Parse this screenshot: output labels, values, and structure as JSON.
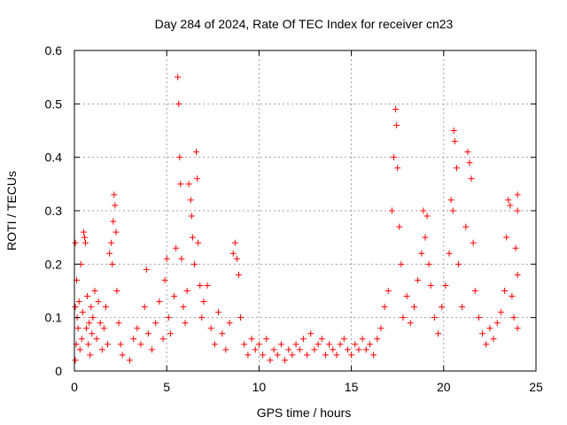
{
  "chart_data": {
    "type": "scatter",
    "title": "Day 284 of 2024, Rate Of TEC Index for receiver cn23",
    "xlabel": "GPS time / hours",
    "ylabel": "ROTI / TECUs",
    "xlim": [
      0,
      25
    ],
    "ylim": [
      0,
      0.6
    ],
    "xticks": [
      0,
      5,
      10,
      15,
      20,
      25
    ],
    "yticks": [
      0,
      0.1,
      0.2,
      0.3,
      0.4,
      0.5,
      0.6
    ],
    "xtick_labels": [
      "0",
      "5",
      "10",
      "15",
      "20",
      "25"
    ],
    "ytick_labels": [
      "0",
      "0.1",
      "0.2",
      "0.3",
      "0.4",
      "0.5",
      "0.6"
    ],
    "grid": true,
    "marker": "+",
    "color": "#ff0000",
    "series": [
      {
        "points": [
          [
            0.05,
            0.02
          ],
          [
            0.05,
            0.12
          ],
          [
            0.05,
            0.24
          ],
          [
            0.1,
            0.05
          ],
          [
            0.12,
            0.17
          ],
          [
            0.15,
            0.1
          ],
          [
            0.2,
            0.08
          ],
          [
            0.25,
            0.13
          ],
          [
            0.3,
            0.04
          ],
          [
            0.35,
            0.2
          ],
          [
            0.4,
            0.06
          ],
          [
            0.45,
            0.11
          ],
          [
            0.5,
            0.26
          ],
          [
            0.55,
            0.25
          ],
          [
            0.6,
            0.24
          ],
          [
            0.65,
            0.08
          ],
          [
            0.7,
            0.14
          ],
          [
            0.75,
            0.05
          ],
          [
            0.8,
            0.09
          ],
          [
            0.85,
            0.03
          ],
          [
            0.9,
            0.12
          ],
          [
            0.95,
            0.07
          ],
          [
            1.0,
            0.1
          ],
          [
            1.1,
            0.15
          ],
          [
            1.2,
            0.06
          ],
          [
            1.3,
            0.13
          ],
          [
            1.4,
            0.09
          ],
          [
            1.5,
            0.04
          ],
          [
            1.6,
            0.08
          ],
          [
            1.7,
            0.12
          ],
          [
            1.8,
            0.05
          ],
          [
            1.9,
            0.22
          ],
          [
            2.0,
            0.24
          ],
          [
            2.05,
            0.2
          ],
          [
            2.1,
            0.28
          ],
          [
            2.15,
            0.33
          ],
          [
            2.2,
            0.31
          ],
          [
            2.25,
            0.26
          ],
          [
            2.3,
            0.15
          ],
          [
            2.4,
            0.09
          ],
          [
            2.5,
            0.05
          ],
          [
            2.6,
            0.03
          ],
          [
            3.0,
            0.02
          ],
          [
            3.2,
            0.06
          ],
          [
            3.4,
            0.08
          ],
          [
            3.6,
            0.05
          ],
          [
            3.8,
            0.12
          ],
          [
            3.9,
            0.19
          ],
          [
            4.0,
            0.07
          ],
          [
            4.2,
            0.04
          ],
          [
            4.4,
            0.09
          ],
          [
            4.6,
            0.13
          ],
          [
            4.8,
            0.06
          ],
          [
            4.9,
            0.17
          ],
          [
            5.0,
            0.21
          ],
          [
            5.1,
            0.1
          ],
          [
            5.2,
            0.07
          ],
          [
            5.4,
            0.14
          ],
          [
            5.5,
            0.23
          ],
          [
            5.6,
            0.55
          ],
          [
            5.65,
            0.5
          ],
          [
            5.7,
            0.4
          ],
          [
            5.75,
            0.35
          ],
          [
            5.8,
            0.21
          ],
          [
            5.9,
            0.12
          ],
          [
            6.0,
            0.09
          ],
          [
            6.1,
            0.15
          ],
          [
            6.2,
            0.35
          ],
          [
            6.3,
            0.32
          ],
          [
            6.35,
            0.29
          ],
          [
            6.4,
            0.25
          ],
          [
            6.5,
            0.2
          ],
          [
            6.6,
            0.41
          ],
          [
            6.65,
            0.36
          ],
          [
            6.7,
            0.24
          ],
          [
            6.8,
            0.16
          ],
          [
            6.9,
            0.1
          ],
          [
            7.0,
            0.13
          ],
          [
            7.2,
            0.16
          ],
          [
            7.4,
            0.08
          ],
          [
            7.6,
            0.05
          ],
          [
            7.8,
            0.11
          ],
          [
            8.0,
            0.07
          ],
          [
            8.2,
            0.04
          ],
          [
            8.4,
            0.09
          ],
          [
            8.6,
            0.22
          ],
          [
            8.7,
            0.24
          ],
          [
            8.8,
            0.21
          ],
          [
            8.9,
            0.18
          ],
          [
            9.0,
            0.1
          ],
          [
            9.2,
            0.05
          ],
          [
            9.4,
            0.03
          ],
          [
            9.6,
            0.06
          ],
          [
            9.8,
            0.04
          ],
          [
            10.0,
            0.05
          ],
          [
            10.2,
            0.03
          ],
          [
            10.4,
            0.06
          ],
          [
            10.6,
            0.02
          ],
          [
            10.8,
            0.04
          ],
          [
            11.0,
            0.03
          ],
          [
            11.2,
            0.05
          ],
          [
            11.4,
            0.02
          ],
          [
            11.6,
            0.04
          ],
          [
            11.8,
            0.03
          ],
          [
            12.0,
            0.05
          ],
          [
            12.2,
            0.04
          ],
          [
            12.4,
            0.06
          ],
          [
            12.6,
            0.03
          ],
          [
            12.8,
            0.07
          ],
          [
            13.0,
            0.04
          ],
          [
            13.2,
            0.05
          ],
          [
            13.4,
            0.06
          ],
          [
            13.6,
            0.03
          ],
          [
            13.8,
            0.05
          ],
          [
            14.0,
            0.04
          ],
          [
            14.2,
            0.03
          ],
          [
            14.4,
            0.05
          ],
          [
            14.6,
            0.06
          ],
          [
            14.8,
            0.04
          ],
          [
            15.0,
            0.03
          ],
          [
            15.2,
            0.05
          ],
          [
            15.4,
            0.04
          ],
          [
            15.6,
            0.06
          ],
          [
            15.8,
            0.04
          ],
          [
            16.0,
            0.05
          ],
          [
            16.2,
            0.03
          ],
          [
            16.4,
            0.06
          ],
          [
            16.6,
            0.08
          ],
          [
            16.8,
            0.12
          ],
          [
            17.0,
            0.15
          ],
          [
            17.2,
            0.3
          ],
          [
            17.3,
            0.4
          ],
          [
            17.4,
            0.49
          ],
          [
            17.45,
            0.46
          ],
          [
            17.5,
            0.38
          ],
          [
            17.6,
            0.27
          ],
          [
            17.7,
            0.2
          ],
          [
            17.8,
            0.1
          ],
          [
            18.0,
            0.14
          ],
          [
            18.2,
            0.09
          ],
          [
            18.4,
            0.12
          ],
          [
            18.6,
            0.17
          ],
          [
            18.8,
            0.22
          ],
          [
            18.9,
            0.3
          ],
          [
            19.0,
            0.25
          ],
          [
            19.1,
            0.29
          ],
          [
            19.2,
            0.2
          ],
          [
            19.3,
            0.16
          ],
          [
            19.5,
            0.1
          ],
          [
            19.7,
            0.07
          ],
          [
            19.9,
            0.12
          ],
          [
            20.1,
            0.16
          ],
          [
            20.3,
            0.22
          ],
          [
            20.4,
            0.32
          ],
          [
            20.5,
            0.3
          ],
          [
            20.55,
            0.45
          ],
          [
            20.6,
            0.43
          ],
          [
            20.7,
            0.38
          ],
          [
            20.8,
            0.2
          ],
          [
            21.0,
            0.12
          ],
          [
            21.2,
            0.27
          ],
          [
            21.3,
            0.41
          ],
          [
            21.4,
            0.39
          ],
          [
            21.5,
            0.36
          ],
          [
            21.6,
            0.24
          ],
          [
            21.7,
            0.15
          ],
          [
            21.9,
            0.1
          ],
          [
            22.1,
            0.07
          ],
          [
            22.3,
            0.05
          ],
          [
            22.5,
            0.08
          ],
          [
            22.7,
            0.06
          ],
          [
            22.9,
            0.09
          ],
          [
            23.1,
            0.11
          ],
          [
            23.3,
            0.15
          ],
          [
            23.4,
            0.25
          ],
          [
            23.5,
            0.32
          ],
          [
            23.6,
            0.31
          ],
          [
            23.7,
            0.14
          ],
          [
            23.8,
            0.1
          ],
          [
            23.9,
            0.23
          ],
          [
            24.0,
            0.33
          ],
          [
            24.0,
            0.3
          ],
          [
            24.0,
            0.18
          ],
          [
            24.0,
            0.08
          ]
        ]
      }
    ]
  }
}
